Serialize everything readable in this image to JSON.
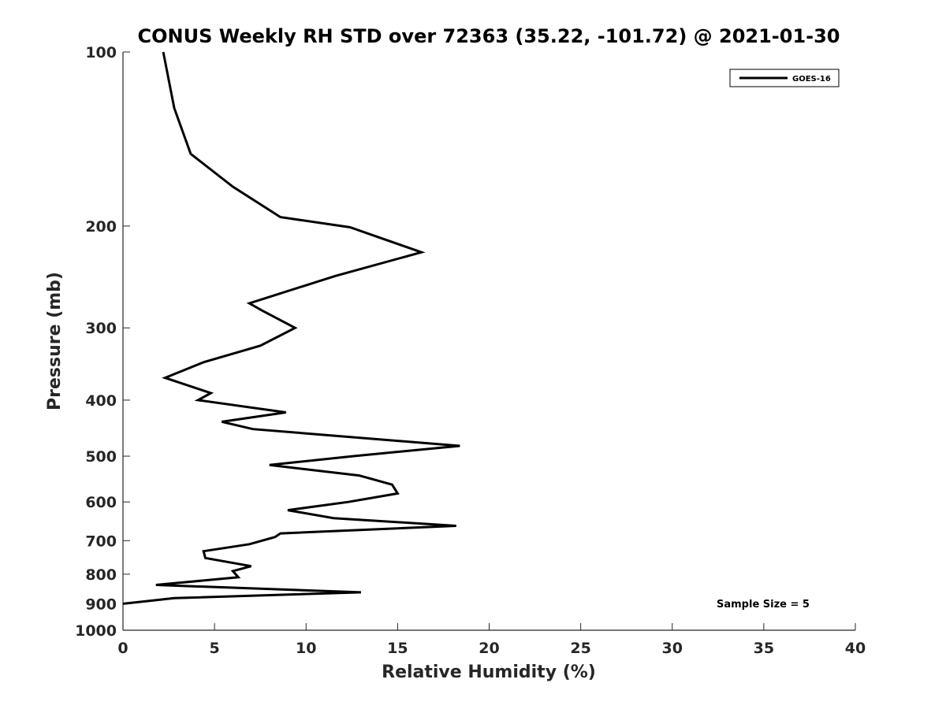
{
  "chart_data": {
    "type": "line",
    "title": "CONUS Weekly RH STD over 72363 (35.22, -101.72) @ 2021-01-30",
    "xlabel": "Relative Humidity (%)",
    "ylabel": "Pressure (mb)",
    "xlim": [
      0,
      40
    ],
    "ylim": [
      100,
      1000
    ],
    "y_scale": "log",
    "y_reversed": true,
    "grid": false,
    "legend_position": "top-right",
    "x_ticks": [
      0,
      5,
      10,
      15,
      20,
      25,
      30,
      35,
      40
    ],
    "y_ticks": [
      100,
      200,
      300,
      400,
      500,
      600,
      700,
      800,
      900,
      1000
    ],
    "annotation": "Sample Size = 5",
    "series": [
      {
        "name": "GOES-16",
        "color": "#000000",
        "x": [
          2.2,
          2.8,
          3.7,
          6.0,
          8.6,
          12.4,
          16.3,
          11.6,
          6.9,
          7.6,
          9.4,
          7.5,
          4.4,
          2.3,
          4.8,
          4.1,
          8.9,
          5.4,
          7.1,
          18.4,
          12.6,
          8.0,
          12.9,
          14.7,
          15.0,
          12.3,
          9.0,
          11.5,
          18.2,
          8.6,
          8.3,
          6.9,
          4.4,
          4.5,
          7.0,
          6.0,
          6.3,
          1.8,
          13.0,
          2.8,
          0.0
        ],
        "y": [
          100,
          125,
          150,
          171,
          193,
          201,
          222,
          244,
          272,
          280,
          300,
          322,
          344,
          366,
          389,
          400,
          420,
          436,
          449,
          480,
          500,
          518,
          540,
          560,
          580,
          600,
          620,
          640,
          660,
          680,
          690,
          710,
          730,
          750,
          775,
          790,
          810,
          835,
          860,
          880,
          900
        ]
      }
    ]
  }
}
